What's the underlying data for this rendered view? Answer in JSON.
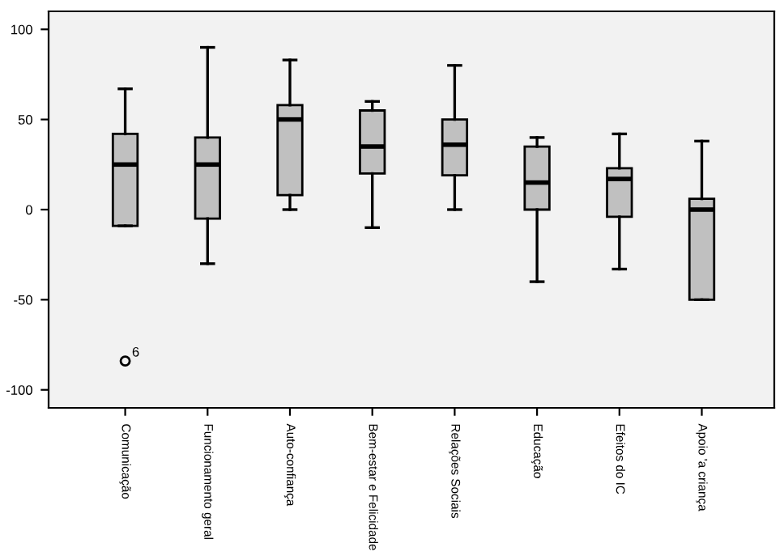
{
  "chart_data": {
    "type": "box",
    "categories": [
      "Comunicação",
      "Funcionamento geral",
      "Auto-confiança",
      "Bem-estar e Felicidade",
      "Relações Sociais",
      "Educação",
      "Efeitos do IC",
      "Apoio 'a criança"
    ],
    "color": "#c0c0c0",
    "boxes": [
      {
        "low": -9,
        "q1": -9,
        "median": 25,
        "q3": 42,
        "high": 67,
        "outliers": [
          -84
        ]
      },
      {
        "low": -30,
        "q1": -5,
        "median": 25,
        "q3": 40,
        "high": 90
      },
      {
        "low": 0,
        "q1": 8,
        "median": 50,
        "q3": 58,
        "high": 83
      },
      {
        "low": -10,
        "q1": 20,
        "median": 35,
        "q3": 55,
        "high": 60
      },
      {
        "low": 0,
        "q1": 19,
        "median": 36,
        "q3": 50,
        "high": 80
      },
      {
        "low": -40,
        "q1": 0,
        "median": 15,
        "q3": 35,
        "high": 40
      },
      {
        "low": -33,
        "q1": -4,
        "median": 17,
        "q3": 23,
        "high": 42
      },
      {
        "low": -50,
        "q1": -50,
        "median": 0,
        "q3": 6,
        "high": 38
      }
    ],
    "annotations": [
      "6"
    ],
    "ylim": [
      -110,
      110
    ],
    "yticks": [
      -100,
      -50,
      0,
      50,
      100
    ],
    "grid": false,
    "legend": false
  }
}
